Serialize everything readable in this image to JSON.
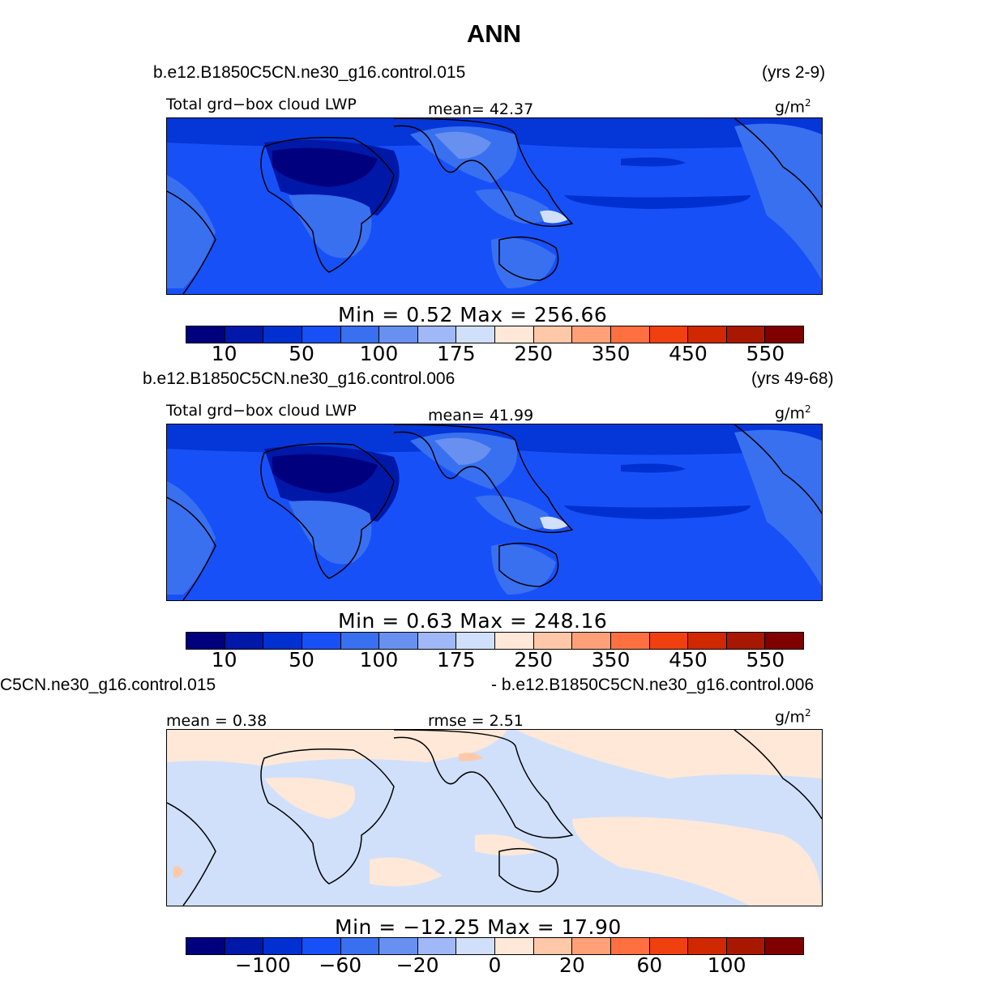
{
  "title": "ANN",
  "colors": [
    "#00007F",
    "#0018A8",
    "#0030D0",
    "#1850F8",
    "#3870F0",
    "#6890F0",
    "#A0B8F8",
    "#D0E0FA",
    "#FFE8D8",
    "#FFC8A8",
    "#FFA078",
    "#FF7040",
    "#F04010",
    "#D02800",
    "#A81800",
    "#800000"
  ],
  "panels": [
    {
      "case": "b.e12.B1850C5CN.ne30_g16.control.015",
      "years": "(yrs 2-9)",
      "var": "Total grd−box cloud LWP",
      "mean": "mean=  42.37",
      "units": "g/m",
      "units_sup": "2",
      "minmax": "Min  =    0.52  Max  =  256.66",
      "ticks": [
        "10",
        "50",
        "100",
        "175",
        "250",
        "350",
        "450",
        "550"
      ]
    },
    {
      "case": "b.e12.B1850C5CN.ne30_g16.control.006",
      "years": "(yrs 49-68)",
      "var": "Total grd−box cloud LWP",
      "mean": "mean=  41.99",
      "units": "g/m",
      "units_sup": "2",
      "minmax": "Min  =    0.63  Max  =  248.16",
      "ticks": [
        "10",
        "50",
        "100",
        "175",
        "250",
        "350",
        "450",
        "550"
      ]
    },
    {
      "case_left": "C5CN.ne30_g16.control.015",
      "case_right": "- b.e12.B1850C5CN.ne30_g16.control.006",
      "mean": "mean =    0.38",
      "rmse": "rmse =    2.51",
      "units": "g/m",
      "units_sup": "2",
      "minmax": "Min  = −12.25  Max  =   17.90",
      "ticks": [
        "−100",
        "−60",
        "−20",
        "0",
        "20",
        "60",
        "100"
      ]
    }
  ]
}
